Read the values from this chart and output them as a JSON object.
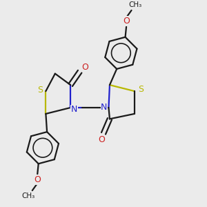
{
  "bg_color": "#ebebeb",
  "bond_color": "#1a1a1a",
  "S_color": "#b8b800",
  "N_color": "#2020cc",
  "O_color": "#cc2020",
  "line_width": 1.6,
  "fig_size": [
    3.0,
    3.0
  ],
  "dpi": 100,
  "xlim": [
    0,
    10
  ],
  "ylim": [
    0,
    10
  ]
}
